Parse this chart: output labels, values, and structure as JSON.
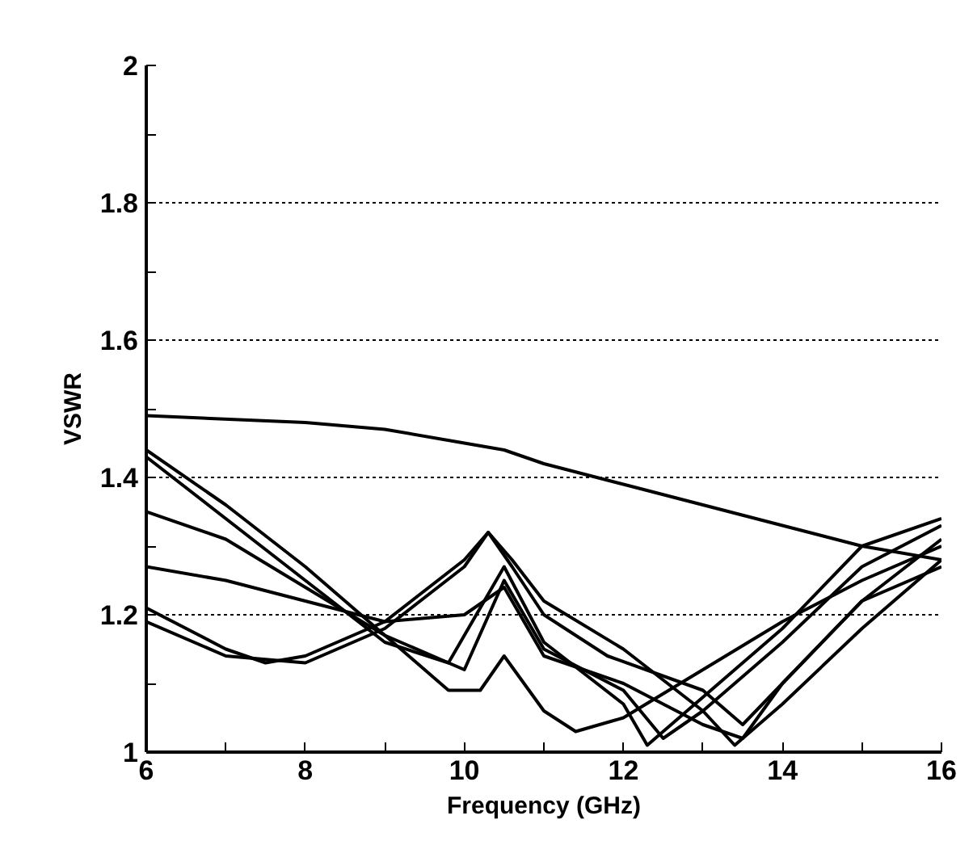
{
  "chart_data": {
    "type": "line",
    "xlabel": "Frequency (GHz)",
    "ylabel": "VSWR",
    "xlim": [
      6,
      16
    ],
    "ylim": [
      1,
      2
    ],
    "xticks": [
      6,
      {
        "value": 7,
        "label": null
      },
      8,
      {
        "value": 9,
        "label": null
      },
      10,
      {
        "value": 11,
        "label": null
      },
      12,
      {
        "value": 13,
        "label": null
      },
      14,
      {
        "value": 15,
        "label": null
      },
      16
    ],
    "yticks": [
      1,
      {
        "value": 1.1,
        "label": null
      },
      1.2,
      {
        "value": 1.3,
        "label": null
      },
      1.4,
      {
        "value": 1.5,
        "label": null
      },
      1.6,
      {
        "value": 1.7,
        "label": null
      },
      1.8,
      {
        "value": 1.9,
        "label": null
      },
      2
    ],
    "grid": "y",
    "marker": "none",
    "line_style": "solid",
    "series": [
      {
        "color": "#000000",
        "x": [
          6,
          8,
          9,
          10,
          10.5,
          11,
          12,
          13,
          14,
          15,
          16
        ],
        "values": [
          1.49,
          1.48,
          1.47,
          1.45,
          1.44,
          1.42,
          1.39,
          1.36,
          1.33,
          1.3,
          1.28
        ]
      },
      {
        "color": "#000000",
        "x": [
          6,
          7,
          8,
          9,
          9.8,
          10.2,
          10.5,
          11,
          11.4,
          12,
          13,
          14,
          15,
          16
        ],
        "values": [
          1.44,
          1.36,
          1.27,
          1.17,
          1.09,
          1.09,
          1.14,
          1.06,
          1.03,
          1.05,
          1.12,
          1.19,
          1.25,
          1.3
        ]
      },
      {
        "color": "#000000",
        "x": [
          6,
          7,
          7.5,
          8,
          9,
          10,
          10.3,
          10.6,
          11,
          12,
          13,
          13.4,
          14,
          15,
          16
        ],
        "values": [
          1.21,
          1.15,
          1.13,
          1.14,
          1.19,
          1.28,
          1.32,
          1.28,
          1.22,
          1.15,
          1.06,
          1.01,
          1.07,
          1.18,
          1.28
        ]
      },
      {
        "color": "#000000",
        "x": [
          6,
          7,
          8,
          9,
          10,
          10.5,
          11,
          12,
          12.5,
          13,
          14,
          15,
          16
        ],
        "values": [
          1.35,
          1.31,
          1.24,
          1.17,
          1.12,
          1.25,
          1.15,
          1.09,
          1.02,
          1.06,
          1.16,
          1.27,
          1.33
        ]
      },
      {
        "color": "#000000",
        "x": [
          6,
          7,
          8,
          9,
          10,
          10.5,
          11,
          12,
          13,
          13.5,
          14,
          15,
          16
        ],
        "values": [
          1.27,
          1.25,
          1.22,
          1.19,
          1.2,
          1.24,
          1.14,
          1.1,
          1.04,
          1.02,
          1.1,
          1.22,
          1.31
        ]
      },
      {
        "color": "#000000",
        "x": [
          6,
          8,
          9,
          9.8,
          10.5,
          11,
          12,
          12.3,
          13,
          14,
          15,
          16
        ],
        "values": [
          1.43,
          1.25,
          1.16,
          1.13,
          1.27,
          1.16,
          1.07,
          1.01,
          1.08,
          1.18,
          1.3,
          1.34
        ]
      },
      {
        "color": "#000000",
        "x": [
          6,
          7,
          8,
          9,
          10,
          10.3,
          10.6,
          11,
          11.8,
          13,
          13.5,
          14,
          15,
          16
        ],
        "values": [
          1.19,
          1.14,
          1.13,
          1.18,
          1.27,
          1.32,
          1.27,
          1.2,
          1.14,
          1.09,
          1.04,
          1.1,
          1.22,
          1.27
        ]
      }
    ]
  }
}
